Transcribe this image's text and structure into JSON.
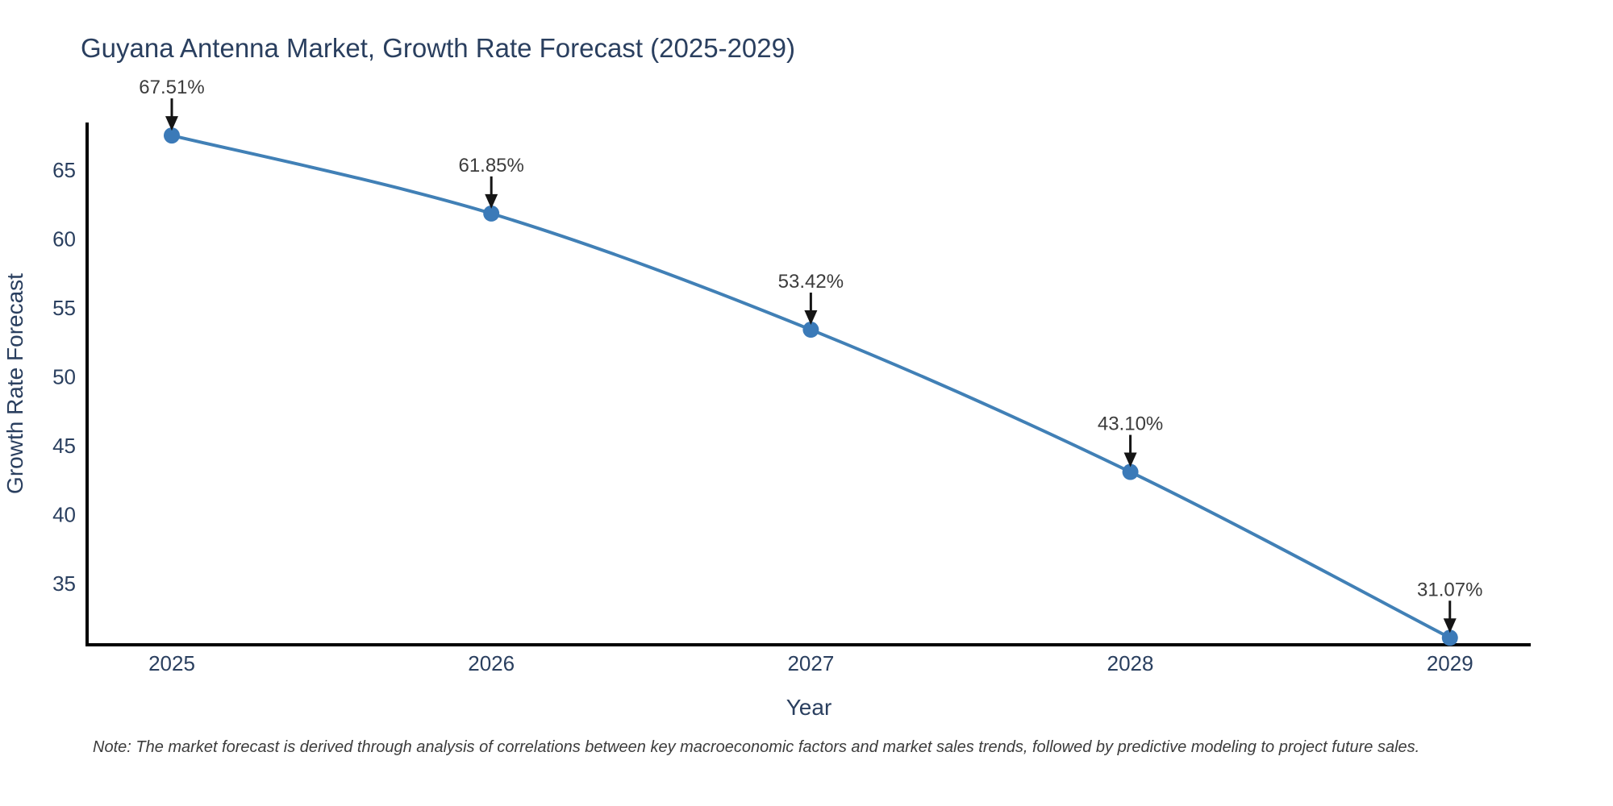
{
  "note": "Note: The market forecast is derived through analysis of correlations between key macroeconomic factors and market sales trends, followed by predictive modeling to project future sales.",
  "chart_data": {
    "type": "line",
    "title": "Guyana Antenna Market, Growth Rate Forecast (2025-2029)",
    "xlabel": "Year",
    "ylabel": "Growth Rate Forecast",
    "categories": [
      "2025",
      "2026",
      "2027",
      "2028",
      "2029"
    ],
    "x_numeric": [
      2025,
      2026,
      2027,
      2028,
      2029
    ],
    "values": [
      67.51,
      61.85,
      53.42,
      43.1,
      31.07
    ],
    "point_labels": [
      "67.51%",
      "61.85%",
      "53.42%",
      "43.10%",
      "31.07%"
    ],
    "yticks": [
      35,
      40,
      45,
      50,
      55,
      60,
      65
    ],
    "ylim": [
      30.56,
      68.45
    ],
    "xlim": [
      2024.735,
      2029.253
    ],
    "grid": false,
    "legend_position": "none",
    "marker_size": 10,
    "line_width": 4,
    "annotation_gap_above_point": 60,
    "colors": {
      "background": "#ffffff",
      "line": "#4180b6",
      "marker": "#3b7ab8",
      "axis": "#000000",
      "text": "#2a3f5f",
      "annotation_text": "#3c3c3c",
      "annotation_arrow": "#151515",
      "note_text": "#3c3c3c"
    }
  }
}
